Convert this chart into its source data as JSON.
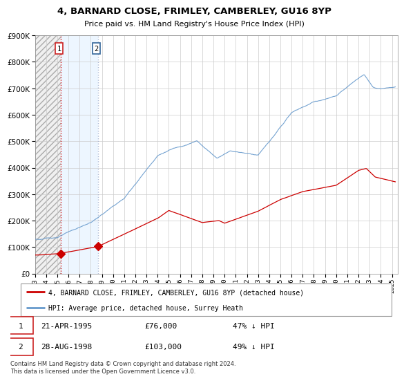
{
  "title": "4, BARNARD CLOSE, FRIMLEY, CAMBERLEY, GU16 8YP",
  "subtitle": "Price paid vs. HM Land Registry's House Price Index (HPI)",
  "ytick_values": [
    0,
    100000,
    200000,
    300000,
    400000,
    500000,
    600000,
    700000,
    800000,
    900000
  ],
  "sale1": {
    "date_num": 1995.31,
    "price": 76000,
    "label": "1",
    "date_str": "21-APR-1995",
    "pct": "47% ↓ HPI"
  },
  "sale2": {
    "date_num": 1998.65,
    "price": 103000,
    "label": "2",
    "date_str": "28-AUG-1998",
    "pct": "49% ↓ HPI"
  },
  "hpi_color": "#6699cc",
  "price_color": "#cc0000",
  "legend_line1": "4, BARNARD CLOSE, FRIMLEY, CAMBERLEY, GU16 8YP (detached house)",
  "legend_line2": "HPI: Average price, detached house, Surrey Heath",
  "footnote": "Contains HM Land Registry data © Crown copyright and database right 2024.\nThis data is licensed under the Open Government Licence v3.0.",
  "xmin": 1993.0,
  "xmax": 2025.5,
  "ymin": 0,
  "ymax": 900000,
  "xticks": [
    1993,
    1994,
    1995,
    1996,
    1997,
    1998,
    1999,
    2000,
    2001,
    2002,
    2003,
    2004,
    2005,
    2006,
    2007,
    2008,
    2009,
    2010,
    2011,
    2012,
    2013,
    2014,
    2015,
    2016,
    2017,
    2018,
    2019,
    2020,
    2021,
    2022,
    2023,
    2024,
    2025
  ]
}
